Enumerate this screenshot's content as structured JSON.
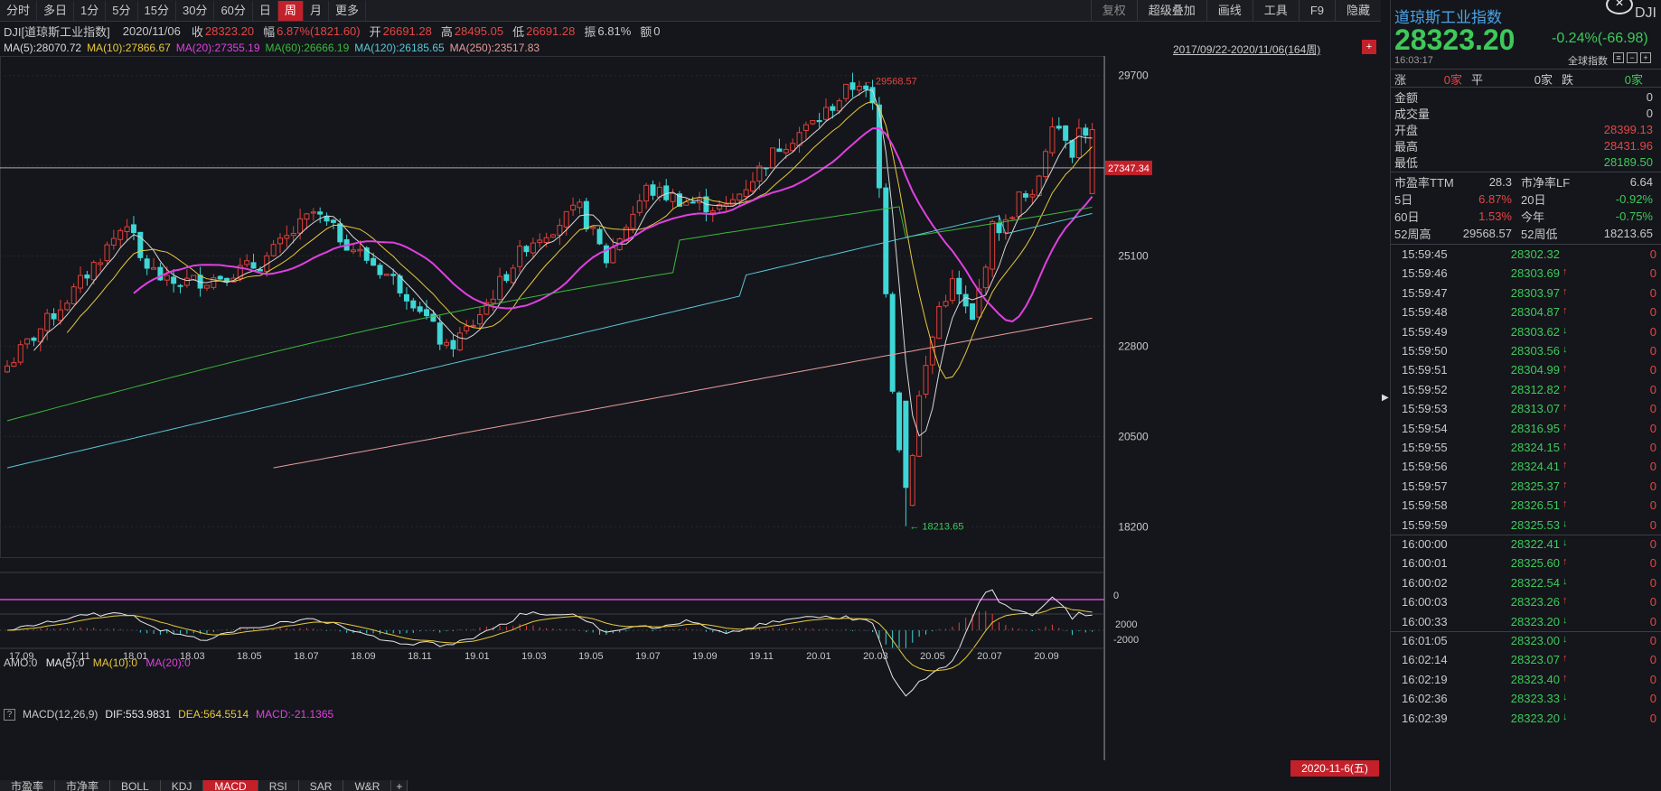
{
  "period_tabs": [
    "分时",
    "多日",
    "1分",
    "5分",
    "15分",
    "30分",
    "60分",
    "日",
    "周",
    "月",
    "更多"
  ],
  "active_period": "周",
  "toolbar": [
    "复权",
    "超级叠加",
    "画线",
    "工具",
    "F9",
    "隐藏"
  ],
  "info": {
    "code": "DJI[道琼斯工业指数]",
    "date": "2020/11/06",
    "close_label": "收",
    "close": "28323.20",
    "change_label": "幅",
    "change": "6.87%(1821.60)",
    "open_label": "开",
    "open": "26691.28",
    "high_label": "高",
    "high": "28495.05",
    "low_label": "低",
    "low": "26691.28",
    "amp_label": "振",
    "amp": "6.81%",
    "amount_label": "额",
    "amount": "0"
  },
  "ma_legend": [
    {
      "label": "MA(5):28070.72",
      "color": "#d8d8d8"
    },
    {
      "label": "MA(10):27866.67",
      "color": "#e8c83c"
    },
    {
      "label": "MA(20):27355.19",
      "color": "#e040e0"
    },
    {
      "label": "MA(60):26666.19",
      "color": "#3cb83c"
    },
    {
      "label": "MA(120):26185.65",
      "color": "#5cc8d8"
    },
    {
      "label": "MA(250):23517.83",
      "color": "#e89c9c"
    }
  ],
  "range_label": "2017/09/22-2020/11/06(164周)",
  "range_icon": "+",
  "chart_data": {
    "type": "candlestick",
    "ylim": [
      17400,
      30200
    ],
    "y_ticks": [
      29700,
      27400,
      25100,
      22800,
      20500,
      18200
    ],
    "y_tick_labels": [
      "29700",
      "27400",
      "25100",
      "22800",
      "20500",
      "18200"
    ],
    "x_labels": [
      "17.09",
      "17.11",
      "18.01",
      "18.03",
      "18.05",
      "18.07",
      "18.09",
      "18.11",
      "19.01",
      "19.03",
      "19.05",
      "19.07",
      "19.09",
      "19.11",
      "20.01",
      "20.03",
      "20.05",
      "20.07",
      "20.09"
    ],
    "crosshair_value": 27347.34,
    "crosshair_label": "27347.34",
    "high_annotation": {
      "value": 29568.57,
      "label": "29568.57"
    },
    "low_annotation": {
      "value": 18213.65,
      "label": "18213.65"
    },
    "bars": 164,
    "last_close": 28323.2
  },
  "amo": {
    "label": "AMO:0",
    "ma5": "MA(5):0",
    "ma10": "MA(10):0",
    "ma20": "MA(20):0",
    "zero_tick": "0"
  },
  "macd": {
    "box": "?",
    "label": "MACD(12,26,9)",
    "dif": "DIF:553.9831",
    "dea": "DEA:564.5514",
    "macd": "MACD:-21.1365",
    "tick_top": "2000",
    "tick_bottom": "-2000"
  },
  "date_marker": "2020-11-6(五)",
  "bottom_tabs": [
    "市盈率",
    "市净率",
    "BOLL",
    "KDJ",
    "MACD",
    "RSI",
    "SAR",
    "W&R",
    "+"
  ],
  "active_bottom_tab": "MACD",
  "panel": {
    "title": "道琼斯工业指数",
    "code": "DJI",
    "close_btn": "×",
    "price": "28323.20",
    "change": "-0.24%(-66.98)",
    "time": "16:03:17",
    "index_label": "全球指数",
    "icons": [
      "≡",
      "−",
      "+"
    ],
    "zhang_label": "涨",
    "zhang_val": "0家",
    "ping_label": "平",
    "ping_val": "0家",
    "die_label": "跌",
    "die_val": "0家",
    "stats": [
      {
        "label": "金额",
        "value": "0",
        "color": "#c8c8c8"
      },
      {
        "label": "成交量",
        "value": "0",
        "color": "#c8c8c8"
      },
      {
        "label": "开盘",
        "value": "28399.13",
        "color": "#e64545"
      },
      {
        "label": "最高",
        "value": "28431.96",
        "color": "#e64545"
      },
      {
        "label": "最低",
        "value": "28189.50",
        "color": "#3ec95a"
      }
    ],
    "pe_label": "市盈率TTM",
    "pe": "28.3",
    "pb_label": "市净率LF",
    "pb": "6.64",
    "d5_label": "5日",
    "d5": "6.87%",
    "d20_label": "20日",
    "d20": "-0.92%",
    "d60_label": "60日",
    "d60": "1.53%",
    "ytd_label": "今年",
    "ytd": "-0.75%",
    "w52h_label": "52周高",
    "w52h": "29568.57",
    "w52l_label": "52周低",
    "w52l": "18213.65",
    "ticks": [
      {
        "time": "15:59:45",
        "price": "28302.32",
        "dir": ""
      },
      {
        "time": "15:59:46",
        "price": "28303.69",
        "dir": "up"
      },
      {
        "time": "15:59:47",
        "price": "28303.97",
        "dir": "up"
      },
      {
        "time": "15:59:48",
        "price": "28304.87",
        "dir": "up"
      },
      {
        "time": "15:59:49",
        "price": "28303.62",
        "dir": "down"
      },
      {
        "time": "15:59:50",
        "price": "28303.56",
        "dir": "down"
      },
      {
        "time": "15:59:51",
        "price": "28304.99",
        "dir": "up"
      },
      {
        "time": "15:59:52",
        "price": "28312.82",
        "dir": "up"
      },
      {
        "time": "15:59:53",
        "price": "28313.07",
        "dir": "up"
      },
      {
        "time": "15:59:54",
        "price": "28316.95",
        "dir": "up"
      },
      {
        "time": "15:59:55",
        "price": "28324.15",
        "dir": "up"
      },
      {
        "time": "15:59:56",
        "price": "28324.41",
        "dir": "up"
      },
      {
        "time": "15:59:57",
        "price": "28325.37",
        "dir": "up"
      },
      {
        "time": "15:59:58",
        "price": "28326.51",
        "dir": "up"
      },
      {
        "time": "15:59:59",
        "price": "28325.53",
        "dir": "down"
      },
      {
        "time": "16:00:00",
        "price": "28322.41",
        "dir": "down"
      },
      {
        "time": "16:00:01",
        "price": "28325.60",
        "dir": "up"
      },
      {
        "time": "16:00:02",
        "price": "28322.54",
        "dir": "down"
      },
      {
        "time": "16:00:03",
        "price": "28323.26",
        "dir": "up"
      },
      {
        "time": "16:00:33",
        "price": "28323.20",
        "dir": "down"
      },
      {
        "time": "16:01:05",
        "price": "28323.00",
        "dir": "down"
      },
      {
        "time": "16:02:14",
        "price": "28323.07",
        "dir": "up"
      },
      {
        "time": "16:02:19",
        "price": "28323.40",
        "dir": "up"
      },
      {
        "time": "16:02:36",
        "price": "28323.33",
        "dir": "down"
      },
      {
        "time": "16:02:39",
        "price": "28323.20",
        "dir": "down"
      }
    ],
    "tick_vol": "0"
  }
}
